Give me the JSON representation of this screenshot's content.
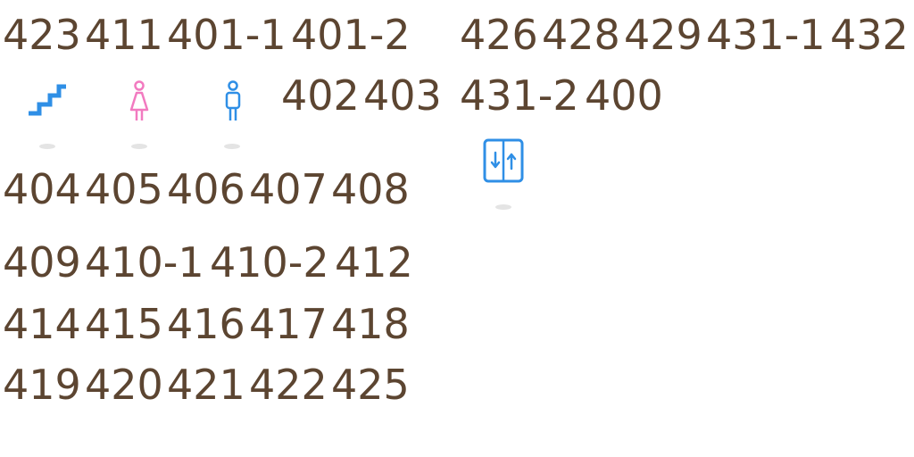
{
  "floor_map": {
    "rows": [
      [
        "423",
        "411",
        "401-1",
        "401-2",
        "426",
        "428",
        "429",
        "431-1",
        "432"
      ],
      [
        "402",
        "403",
        "431-2",
        "400"
      ],
      [
        "404",
        "405",
        "406",
        "407",
        "408"
      ],
      [
        "409",
        "410-1",
        "410-2",
        "412"
      ],
      [
        "414",
        "415",
        "416",
        "417",
        "418"
      ],
      [
        "419",
        "420",
        "421",
        "422",
        "425"
      ]
    ]
  },
  "icons": {
    "stairs": "stairs-icon",
    "womens_restroom": "female-restroom-icon",
    "mens_restroom": "male-restroom-icon",
    "elevator": "elevator-icon"
  },
  "colors": {
    "room_text": "#5c4531",
    "stairs": "#2f8fe6",
    "female": "#f27ac0",
    "male": "#2f8fe6",
    "elevator": "#2f8fe6"
  }
}
